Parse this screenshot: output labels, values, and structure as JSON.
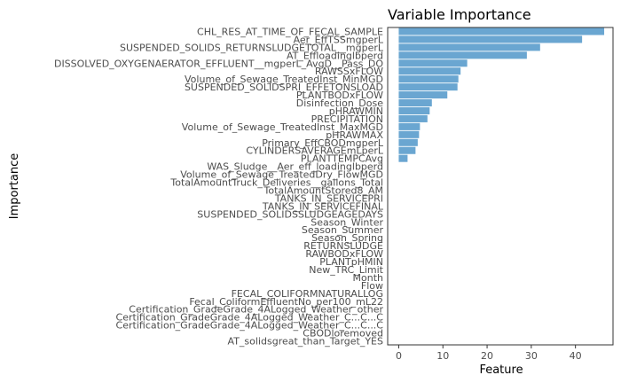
{
  "chart_data": {
    "type": "bar",
    "orientation": "horizontal",
    "title": "Variable Importance",
    "xlabel": "Feature",
    "ylabel": "Importance",
    "xlim": [
      -2.5,
      48.5
    ],
    "x_ticks": [
      0,
      10,
      20,
      30,
      40
    ],
    "grid": false,
    "bar_color": "#6aa6d1",
    "categories": [
      "CHL_RES_AT_TIME_OF_FECAL_SAMPLE",
      "Aer_EffTSSmgperL",
      "SUSPENDED_SOLIDS_RETURNSLUDGETOTAL__mgperL",
      "AT_Effloadinglbperd",
      "DISSOLVED_OXYGENAERATOR_EFFLUENT__mgperL_AvgD__Pass_DO",
      "RAWSSxFLOW",
      "Volume_of_Sewage_TreatedInst_MinMGD",
      "SUSPENDED_SOLIDSPRI_EFFETONSLOAD",
      "PLANTBODxFLOW",
      "Disinfection_Dose",
      "pHRAWMIN",
      "PRECIPITATION",
      "Volume_of_Sewage_TreatedInst_MaxMGD",
      "pHRAWMAX",
      "Primary_EffCBODmgperL",
      "CYLINDERSAVERAGEmLperL",
      "PLANTTEMPCAvg",
      "WAS_Sludge__Aer_eff_loadinglbperd",
      "Volume_of_Sewage_TreatedDry_FlowMGD",
      "TotalAmountTruck_Deliveries__gallons_Total",
      "TotalAmountStored8_AM",
      "TANKS_IN_SERVICEPRI",
      "TANKS_IN_SERVICEFINAL",
      "SUSPENDED_SOLIDSSLUDGEAGEDAYS",
      "Season_Winter",
      "Season_Summer",
      "Season_Spring",
      "RETURNSLUDGE",
      "RAWBODxFLOW",
      "PLANTpHMIN",
      "New_TRC_Limit",
      "Month",
      "Flow",
      "FECAL_COLIFORMNATURALLOG",
      "Fecal_ColiformEffluentNo_per100_mL22",
      "Certification_GradeGrade_4ALogged_Weather_other",
      "Certification_GradeGrade_4ALogged_Weather_C...C...C",
      "Certification_GradeGrade_4ALogged_Weather_C...C...C",
      "CBODloremoved",
      "AT_solidsgreat_than_Target_YES"
    ],
    "values": [
      46.5,
      41.5,
      32.0,
      29.0,
      15.5,
      14.0,
      13.5,
      13.3,
      11.0,
      7.5,
      7.0,
      6.5,
      4.8,
      4.6,
      4.3,
      3.8,
      2.0,
      0,
      0,
      0,
      0,
      0,
      0,
      0,
      0,
      0,
      0,
      0,
      0,
      0,
      0,
      0,
      0,
      0,
      0,
      0,
      0,
      0,
      0,
      0
    ]
  }
}
